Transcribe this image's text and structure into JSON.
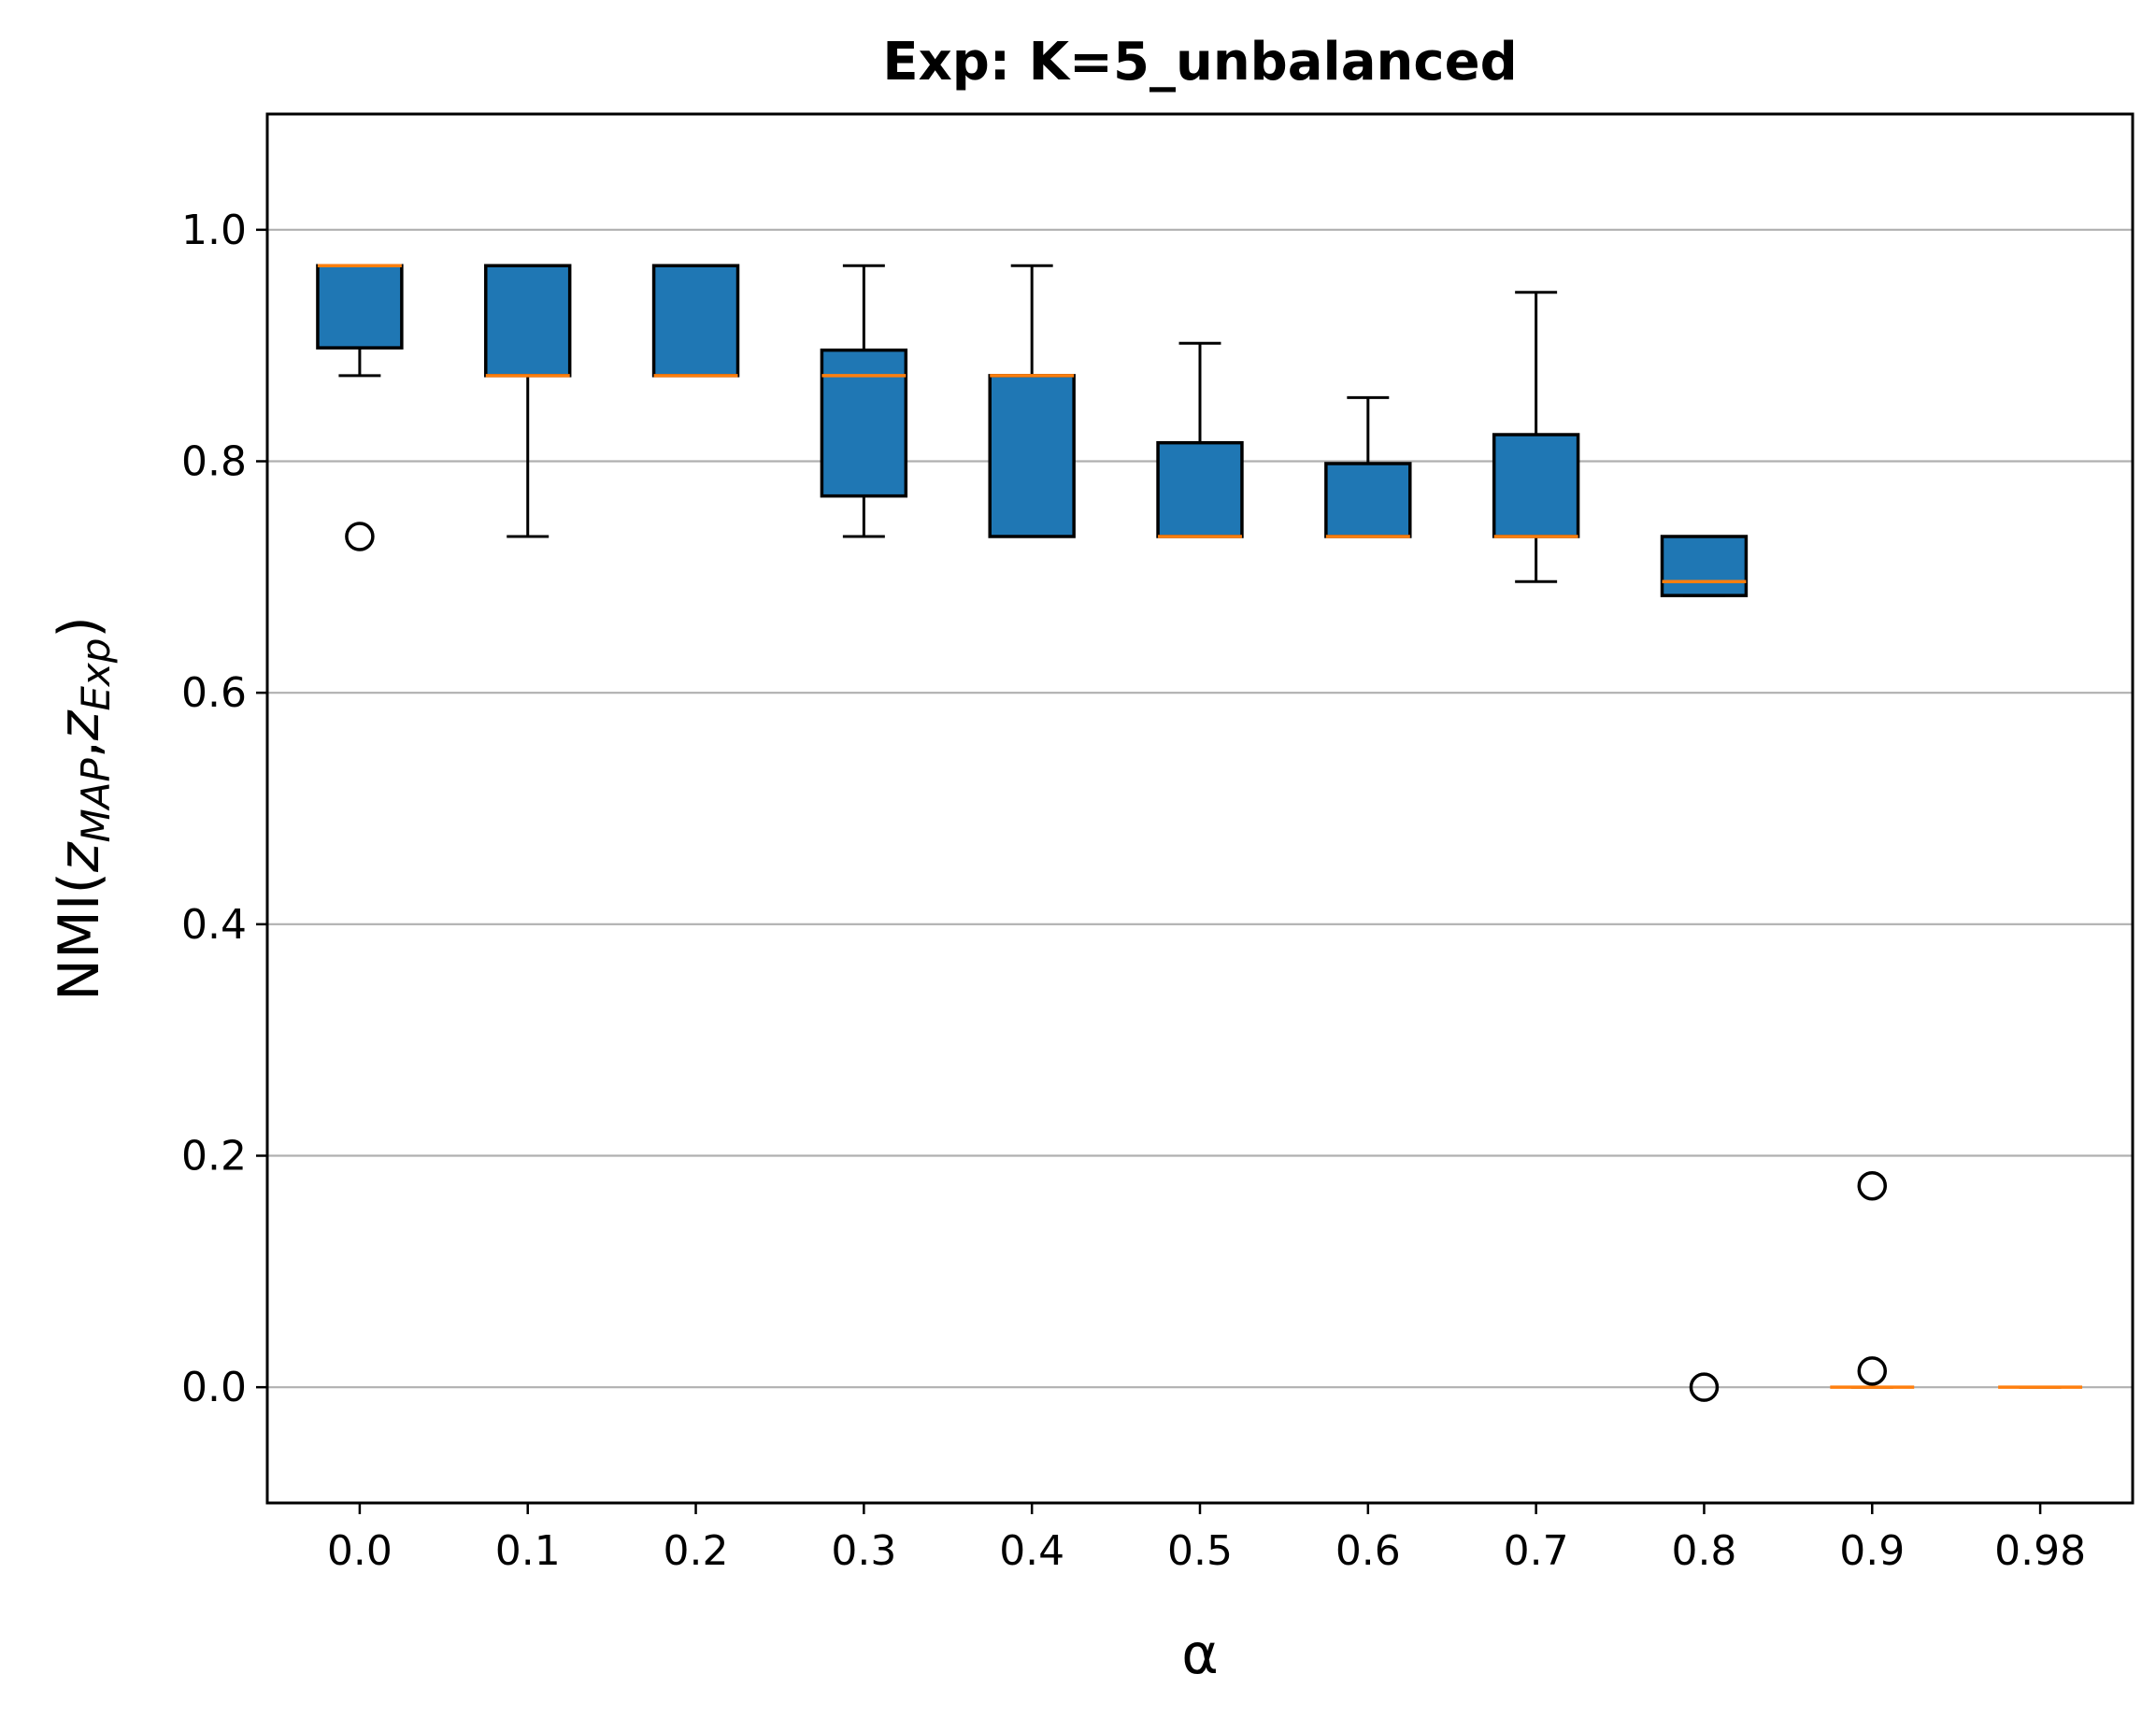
{
  "chart_data": {
    "type": "box",
    "title": "Exp: K=5_unbalanced",
    "xlabel": "α",
    "ylabel": {
      "main": "NMI(",
      "z1": "z",
      "sub1": "MAP",
      "comma": ",",
      "z2": "z",
      "sub2": "Exp",
      "close": ")"
    },
    "categories": [
      "0.0",
      "0.1",
      "0.2",
      "0.3",
      "0.4",
      "0.5",
      "0.6",
      "0.7",
      "0.8",
      "0.9",
      "0.98"
    ],
    "ylim": [
      -0.1,
      1.1
    ],
    "yticks": [
      0.0,
      0.2,
      0.4,
      0.6,
      0.8,
      1.0
    ],
    "ytick_labels": [
      "0.0",
      "0.2",
      "0.4",
      "0.6",
      "0.8",
      "1.0"
    ],
    "grid": {
      "y": true,
      "x": false
    },
    "colors": {
      "box_fill": "#1f77b4",
      "median": "#ff7f0e",
      "grid": "#b0b0b0",
      "edge": "#000000"
    },
    "boxes": [
      {
        "category": "0.0",
        "whislo": 0.874,
        "q1": 0.898,
        "median": 0.969,
        "q3": 0.969,
        "whishi": 0.969,
        "fliers": [
          0.735
        ]
      },
      {
        "category": "0.1",
        "whislo": 0.735,
        "q1": 0.874,
        "median": 0.874,
        "q3": 0.969,
        "whishi": 0.969,
        "fliers": []
      },
      {
        "category": "0.2",
        "whislo": 0.874,
        "q1": 0.874,
        "median": 0.874,
        "q3": 0.969,
        "whishi": 0.969,
        "fliers": []
      },
      {
        "category": "0.3",
        "whislo": 0.735,
        "q1": 0.77,
        "median": 0.874,
        "q3": 0.896,
        "whishi": 0.969,
        "fliers": []
      },
      {
        "category": "0.4",
        "whislo": 0.735,
        "q1": 0.735,
        "median": 0.874,
        "q3": 0.874,
        "whishi": 0.969,
        "fliers": []
      },
      {
        "category": "0.5",
        "whislo": 0.735,
        "q1": 0.735,
        "median": 0.735,
        "q3": 0.816,
        "whishi": 0.902,
        "fliers": []
      },
      {
        "category": "0.6",
        "whislo": 0.735,
        "q1": 0.735,
        "median": 0.735,
        "q3": 0.798,
        "whishi": 0.855,
        "fliers": []
      },
      {
        "category": "0.7",
        "whislo": 0.696,
        "q1": 0.735,
        "median": 0.735,
        "q3": 0.823,
        "whishi": 0.946,
        "fliers": []
      },
      {
        "category": "0.8",
        "whislo": 0.684,
        "q1": 0.684,
        "median": 0.696,
        "q3": 0.735,
        "whishi": 0.735,
        "fliers": [
          0.0
        ]
      },
      {
        "category": "0.9",
        "whislo": 0.0,
        "q1": 0.0,
        "median": 0.0,
        "q3": 0.0,
        "whishi": 0.0,
        "fliers": [
          0.174,
          0.014
        ]
      },
      {
        "category": "0.98",
        "whislo": 0.0,
        "q1": 0.0,
        "median": 0.0,
        "q3": 0.0,
        "whishi": 0.0,
        "fliers": []
      }
    ]
  }
}
